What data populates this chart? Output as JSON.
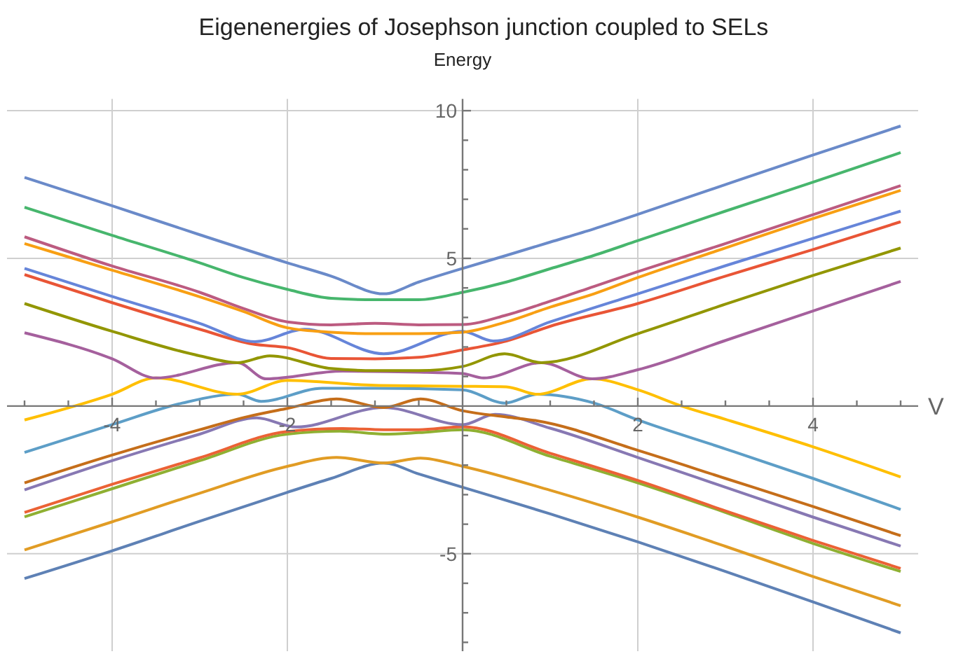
{
  "chart_data": {
    "type": "line",
    "title": "Eigenenergies of Josephson junction coupled to SELs",
    "xlabel": "V",
    "ylabel": "Energy",
    "xlim": [
      -5.2,
      5.2
    ],
    "ylim": [
      -8.3,
      10.4
    ],
    "grid": true,
    "xticks": [
      {
        "value": -5,
        "label": null
      },
      {
        "value": -4.5,
        "label": null
      },
      -4,
      {
        "value": -3.5,
        "label": null
      },
      {
        "value": -3,
        "label": null
      },
      {
        "value": -2.5,
        "label": null
      },
      -2,
      {
        "value": -1.5,
        "label": null
      },
      {
        "value": -1,
        "label": null
      },
      {
        "value": -0.5,
        "label": null
      },
      {
        "value": 0.5,
        "label": null
      },
      {
        "value": 1,
        "label": null
      },
      {
        "value": 1.5,
        "label": null
      },
      2,
      {
        "value": 2.5,
        "label": null
      },
      {
        "value": 3,
        "label": null
      },
      {
        "value": 3.5,
        "label": null
      },
      4,
      {
        "value": 4.5,
        "label": null
      },
      {
        "value": 5,
        "label": null
      }
    ],
    "yticks": [
      {
        "value": -8,
        "label": null
      },
      {
        "value": -7,
        "label": null
      },
      {
        "value": -6,
        "label": null
      },
      -5,
      {
        "value": -4,
        "label": null
      },
      {
        "value": -3,
        "label": null
      },
      {
        "value": -2,
        "label": null
      },
      {
        "value": -1,
        "label": null
      },
      {
        "value": 1,
        "label": null
      },
      {
        "value": 2,
        "label": null
      },
      {
        "value": 3,
        "label": null
      },
      {
        "value": 4,
        "label": null
      },
      5,
      {
        "value": 6,
        "label": null
      },
      {
        "value": 7,
        "label": null
      },
      {
        "value": 8,
        "label": null
      },
      {
        "value": 9,
        "label": null
      },
      10
    ],
    "series": [
      {
        "color": "#5e81b5",
        "x": [
          -5,
          -4,
          -3,
          -2,
          -1.5,
          -0.9,
          -0.5,
          0,
          1,
          2,
          3,
          4,
          5
        ],
        "values": [
          -5.84,
          -4.9,
          -3.9,
          -2.92,
          -2.45,
          -1.93,
          -2.3,
          -2.75,
          -3.65,
          -4.6,
          -5.6,
          -6.63,
          -7.68
        ]
      },
      {
        "color": "#e19c24",
        "x": [
          -5,
          -4,
          -3,
          -2,
          -1.44,
          -0.9,
          -0.48,
          0,
          1,
          2,
          3,
          4,
          5
        ],
        "values": [
          -4.87,
          -3.92,
          -2.95,
          -2.04,
          -1.74,
          -1.93,
          -1.76,
          -2.04,
          -2.85,
          -3.76,
          -4.75,
          -5.77,
          -6.76
        ]
      },
      {
        "color": "#8fb032",
        "x": [
          -5,
          -4,
          -3,
          -2,
          -1.4,
          -0.9,
          -0.5,
          0,
          1,
          2,
          3,
          4,
          5
        ],
        "values": [
          -3.75,
          -2.8,
          -1.85,
          -0.95,
          -0.85,
          -0.95,
          -0.9,
          -0.8,
          -1.7,
          -2.6,
          -3.6,
          -4.65,
          -5.6
        ]
      },
      {
        "color": "#eb6235",
        "x": [
          -5,
          -4,
          -3,
          -2,
          -1.37,
          -0.9,
          -0.5,
          0,
          1,
          2,
          3,
          4,
          5
        ],
        "values": [
          -3.6,
          -2.65,
          -1.75,
          -0.86,
          -0.76,
          -0.8,
          -0.8,
          -0.7,
          -1.6,
          -2.52,
          -3.55,
          -4.55,
          -5.5
        ]
      },
      {
        "color": "#8778b3",
        "x": [
          -5,
          -4,
          -3,
          -2.35,
          -1.9,
          -0.9,
          0,
          0.37,
          1,
          2,
          3,
          4,
          5
        ],
        "values": [
          -2.84,
          -1.85,
          -0.95,
          -0.4,
          -0.71,
          -0.05,
          -0.63,
          -0.28,
          -0.75,
          -1.74,
          -2.75,
          -3.76,
          -4.74
        ]
      },
      {
        "color": "#c56e1a",
        "x": [
          -5,
          -4,
          -3,
          -2.4,
          -2,
          -1.44,
          -0.9,
          -0.48,
          0,
          0.5,
          0.85,
          2,
          3,
          4,
          5
        ],
        "values": [
          -2.6,
          -1.66,
          -0.8,
          -0.32,
          -0.08,
          0.24,
          -0.05,
          0.24,
          -0.16,
          -0.37,
          -0.5,
          -1.5,
          -2.45,
          -3.4,
          -4.39
        ]
      },
      {
        "color": "#5d9ec7",
        "x": [
          -5,
          -4,
          -3.2,
          -2.57,
          -2.3,
          -1.6,
          -1,
          0,
          0.48,
          0.85,
          1.5,
          2,
          3,
          4,
          5
        ],
        "values": [
          -1.57,
          -0.63,
          0.1,
          0.4,
          0.16,
          0.6,
          0.6,
          0.55,
          0.1,
          0.4,
          0.1,
          -0.47,
          -1.45,
          -2.45,
          -3.5
        ]
      },
      {
        "color": "#ffbf00",
        "x": [
          -5,
          -4,
          -3.5,
          -2.57,
          -2,
          -1,
          0,
          0.5,
          0.85,
          1.48,
          2,
          2.5,
          3,
          4,
          5
        ],
        "values": [
          -0.47,
          0.4,
          0.95,
          0.4,
          0.87,
          0.7,
          0.67,
          0.65,
          0.4,
          0.92,
          0.55,
          0,
          -0.45,
          -1.38,
          -2.4
        ]
      },
      {
        "color": "#a5609d",
        "x": [
          -5,
          -4,
          -3.5,
          -2.57,
          -2.24,
          -1.37,
          -0.5,
          0,
          0.24,
          0.9,
          1.48,
          2,
          3,
          4,
          5
        ],
        "values": [
          2.48,
          1.6,
          0.95,
          1.47,
          0.92,
          1.18,
          1.15,
          1.1,
          0.95,
          1.47,
          0.92,
          1.23,
          2.22,
          3.22,
          4.22
        ]
      },
      {
        "color": "#929600",
        "x": [
          -5,
          -4,
          -3,
          -2.57,
          -2.2,
          -1.5,
          -1,
          -0.5,
          0,
          0.48,
          0.9,
          2,
          3,
          4,
          5
        ],
        "values": [
          3.47,
          2.53,
          1.7,
          1.47,
          1.7,
          1.27,
          1.2,
          1.2,
          1.34,
          1.77,
          1.47,
          2.45,
          3.45,
          4.42,
          5.35
        ]
      },
      {
        "color": "#e95536",
        "x": [
          -5,
          -4,
          -3,
          -2.4,
          -2,
          -1.5,
          -1,
          -0.5,
          0,
          0.5,
          1,
          2,
          3,
          4,
          5
        ],
        "values": [
          4.45,
          3.5,
          2.6,
          2.1,
          1.98,
          1.61,
          1.6,
          1.65,
          1.9,
          2.2,
          2.7,
          3.47,
          4.4,
          5.3,
          6.24
        ]
      },
      {
        "color": "#6685d9",
        "x": [
          -5,
          -4,
          -3,
          -2.37,
          -1.8,
          -0.9,
          0,
          0.35,
          1,
          2,
          3,
          4,
          5
        ],
        "values": [
          4.66,
          3.71,
          2.8,
          2.18,
          2.6,
          1.77,
          2.53,
          2.2,
          2.85,
          3.8,
          4.75,
          5.68,
          6.6
        ]
      },
      {
        "color": "#f89f13",
        "x": [
          -5,
          -4,
          -3,
          -2.5,
          -2,
          -1.5,
          -1,
          -0.5,
          0,
          0.5,
          1,
          1.5,
          2,
          3,
          4,
          5
        ],
        "values": [
          5.5,
          4.6,
          3.7,
          3.2,
          2.65,
          2.5,
          2.45,
          2.45,
          2.5,
          2.85,
          3.35,
          3.8,
          4.35,
          5.35,
          6.35,
          7.3
        ]
      },
      {
        "color": "#bc5b80",
        "x": [
          -5,
          -4,
          -3,
          -2.5,
          -2,
          -1.5,
          -1,
          -0.5,
          0,
          0.5,
          1,
          1.5,
          2,
          3,
          4,
          5
        ],
        "values": [
          5.73,
          4.74,
          3.85,
          3.3,
          2.85,
          2.75,
          2.8,
          2.75,
          2.76,
          3.08,
          3.55,
          4.05,
          4.55,
          5.5,
          6.48,
          7.46
        ]
      },
      {
        "color": "#47b66d",
        "x": [
          -5,
          -4,
          -3,
          -2.5,
          -2,
          -1.5,
          -1,
          -0.5,
          0,
          0.5,
          1,
          1.5,
          2,
          3,
          4,
          5
        ],
        "values": [
          6.73,
          5.78,
          4.85,
          4.35,
          3.95,
          3.65,
          3.6,
          3.6,
          3.85,
          4.2,
          4.65,
          5.1,
          5.6,
          6.6,
          7.58,
          8.58
        ]
      },
      {
        "color": "#6a8ac9",
        "x": [
          -5,
          -4,
          -3,
          -2,
          -1.5,
          -0.9,
          -0.5,
          0,
          0.5,
          1,
          1.5,
          2,
          3,
          4,
          5
        ],
        "values": [
          7.74,
          6.78,
          5.8,
          4.85,
          4.4,
          3.8,
          4.2,
          4.66,
          5.1,
          5.55,
          6.0,
          6.49,
          7.5,
          8.5,
          9.48
        ]
      }
    ]
  }
}
